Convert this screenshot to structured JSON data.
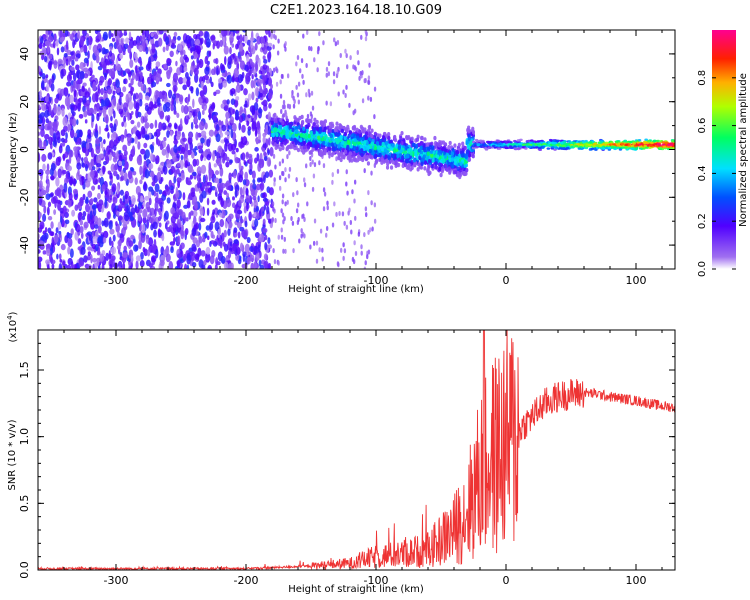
{
  "figure": {
    "title": "C2E1.2023.164.18.10.G09"
  },
  "chart_data": [
    {
      "type": "heatmap",
      "xlabel": "Height of straight line (km)",
      "ylabel": "Frequency (Hz)",
      "xlim": [
        -360,
        130
      ],
      "ylim": [
        -50,
        50
      ],
      "xticks": [
        "-300",
        "-200",
        "-100",
        "0",
        "100"
      ],
      "yticks": [
        "-40",
        "-20",
        "0",
        "20",
        "40"
      ],
      "colorbar": {
        "label": "Normalized spectral amplitude",
        "range": [
          0.0,
          1.0
        ],
        "ticks": [
          "0.0",
          "0.2",
          "0.4",
          "0.6",
          "0.8"
        ],
        "colormap": "rainbow (violet→blue→cyan→green→yellow→red→magenta)"
      },
      "features": [
        {
          "region": "x from -360 to -180",
          "description": "broadband noise across all frequencies, amplitude ~0.1–0.25"
        },
        {
          "region": "x from -180 to -25",
          "description": "signal band centered near +8 Hz at x=-180, drifting to about -5 Hz at x=-30, width ~12 Hz, amplitude up to ~0.5"
        },
        {
          "region": "x from -25 to 130",
          "description": "narrow line at ~+2 Hz, amplitude up to ~1.0"
        }
      ]
    },
    {
      "type": "line",
      "xlabel": "Height of straight line (km)",
      "ylabel": "SNR (10 * v/v)",
      "yscale_label": "(x10",
      "yscale_exp": "4",
      "yscale_close": ")",
      "xlim": [
        -360,
        130
      ],
      "ylim": [
        0,
        1.8
      ],
      "xticks": [
        "-300",
        "-200",
        "-100",
        "0",
        "100"
      ],
      "yticks": [
        "0.0",
        "0.5",
        "1.0",
        "1.5"
      ],
      "color": "#ee3333",
      "envelope": {
        "x": [
          -360,
          -200,
          -150,
          -120,
          -100,
          -80,
          -60,
          -40,
          -30,
          -20,
          -10,
          0,
          10,
          20,
          30,
          40,
          50,
          60,
          70,
          80,
          100,
          120,
          130
        ],
        "y": [
          0.01,
          0.01,
          0.03,
          0.05,
          0.1,
          0.12,
          0.15,
          0.3,
          0.45,
          0.7,
          0.85,
          0.95,
          1.05,
          1.15,
          1.25,
          1.3,
          1.32,
          1.33,
          1.32,
          1.3,
          1.27,
          1.23,
          1.22
        ]
      },
      "peak": {
        "x": -17,
        "y": 1.8
      }
    }
  ]
}
